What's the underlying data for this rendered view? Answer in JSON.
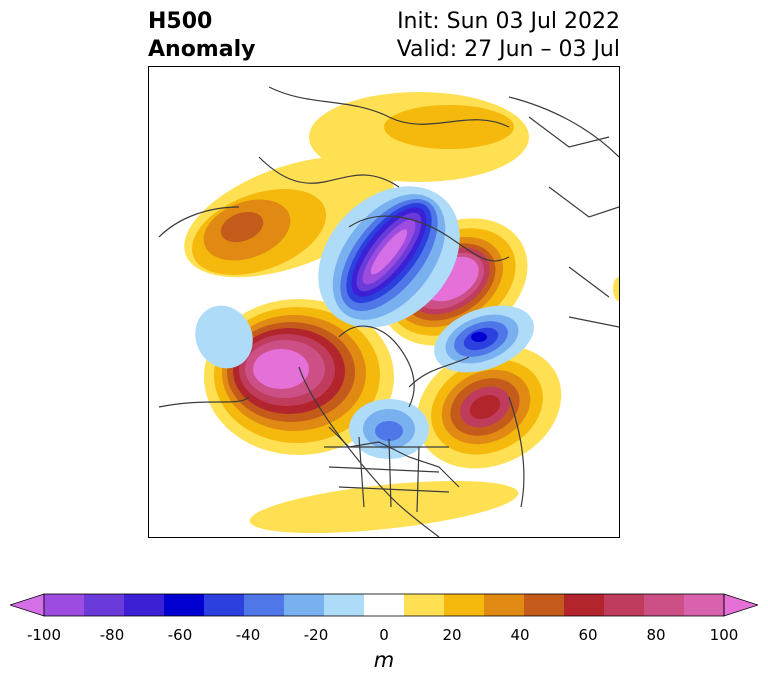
{
  "title": {
    "left_line1": "H500",
    "left_line2": "Anomaly",
    "right_line1": "Init: Sun 03 Jul 2022",
    "right_line2": "Valid: 27 Jun – 03 Jul"
  },
  "map": {
    "projection": "polar stereographic (north pole)",
    "field": "500 hPa geopotential height anomaly"
  },
  "colorbar": {
    "unit": "m",
    "ticks": [
      "-100",
      "-80",
      "-60",
      "-40",
      "-20",
      "0",
      "20",
      "40",
      "60",
      "80",
      "100"
    ],
    "bounds": [
      -100,
      100
    ],
    "extend": "both",
    "colors": [
      "#d56fe7",
      "#9c4ddf",
      "#6b3bd9",
      "#3b20d5",
      "#0000d0",
      "#2c3fdf",
      "#4f77e8",
      "#79b0f0",
      "#aedcf8",
      "#ffffff",
      "#ffe052",
      "#f4b90c",
      "#e08a13",
      "#c45b1b",
      "#b3252d",
      "#c03c5d",
      "#cc4f86",
      "#d862ae",
      "#e470d8"
    ]
  }
}
